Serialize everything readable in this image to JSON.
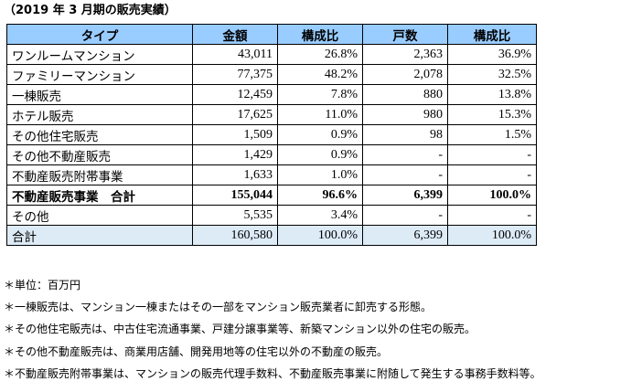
{
  "title": "（2019 年 3 月期の販売実績）",
  "table": {
    "headers": [
      "タイプ",
      "金額",
      "構成比",
      "戸数",
      "構成比"
    ],
    "rows": [
      {
        "cells": [
          "ワンルームマンション",
          "43,011",
          "26.8%",
          "2,363",
          "36.9%"
        ],
        "bold": false,
        "total": false
      },
      {
        "cells": [
          "ファミリーマンション",
          "77,375",
          "48.2%",
          "2,078",
          "32.5%"
        ],
        "bold": false,
        "total": false
      },
      {
        "cells": [
          "一棟販売",
          "12,459",
          "7.8%",
          "880",
          "13.8%"
        ],
        "bold": false,
        "total": false
      },
      {
        "cells": [
          "ホテル販売",
          "17,625",
          "11.0%",
          "980",
          "15.3%"
        ],
        "bold": false,
        "total": false
      },
      {
        "cells": [
          "その他住宅販売",
          "1,509",
          "0.9%",
          "98",
          "1.5%"
        ],
        "bold": false,
        "total": false
      },
      {
        "cells": [
          "その他不動産販売",
          "1,429",
          "0.9%",
          "-",
          "-"
        ],
        "bold": false,
        "total": false
      },
      {
        "cells": [
          "不動産販売附帯事業",
          "1,633",
          "1.0%",
          "-",
          "-"
        ],
        "bold": false,
        "total": false
      },
      {
        "cells": [
          "不動産販売事業　合計",
          "155,044",
          "96.6%",
          "6,399",
          "100.0%"
        ],
        "bold": true,
        "total": false
      },
      {
        "cells": [
          "その他",
          "5,535",
          "3.4%",
          "-",
          "-"
        ],
        "bold": false,
        "total": false
      },
      {
        "cells": [
          "合計",
          "160,580",
          "100.0%",
          "6,399",
          "100.0%"
        ],
        "bold": false,
        "total": true
      }
    ]
  },
  "notes": [
    "＊単位：百万円",
    "＊一棟販売は、マンション一棟またはその一部をマンション販売業者に卸売する形態。",
    "＊その他住宅販売は、中古住宅流通事業、戸建分譲事業等、新築マンション以外の住宅の販売。",
    "＊その他不動産販売は、商業用店舗、開発用地等の住宅以外の不動産の販売。",
    "＊不動産販売附帯事業は、マンションの販売代理手数料、不動産販売事業に附随して発生する事務手数料等。"
  ],
  "colors": {
    "header_bg": "#99ccff",
    "total_row_bg": "#ddebf7"
  }
}
